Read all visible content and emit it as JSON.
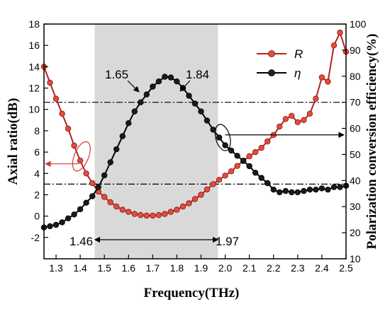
{
  "chart_data": {
    "type": "line",
    "title": "",
    "xlabel": "Frequency(THz)",
    "ylabel_left": "Axial ratio(dB)",
    "ylabel_right": "Polarization conversion efficiency(%)",
    "xlim": [
      1.25,
      2.5
    ],
    "ylim_left": [
      -4,
      18
    ],
    "ylim_right": [
      10,
      100
    ],
    "x_ticks": [
      "1.3",
      "1.4",
      "1.5",
      "1.6",
      "1.7",
      "1.8",
      "1.9",
      "2.0",
      "2.1",
      "2.2",
      "2.3",
      "2.4",
      "2.5"
    ],
    "y_left_ticks": [
      "-2",
      "0",
      "2",
      "4",
      "6",
      "8",
      "10",
      "12",
      "14",
      "16",
      "18"
    ],
    "y_right_ticks": [
      "10",
      "20",
      "30",
      "40",
      "50",
      "60",
      "70",
      "80",
      "90",
      "100"
    ],
    "shaded_band": [
      1.46,
      1.97
    ],
    "ref_line_left": 3,
    "ref_line_right": 70,
    "annotations": {
      "a165": "1.65",
      "a184": "1.84",
      "a146": "1.46",
      "a197": "1.97"
    },
    "legend": {
      "r_label": "R",
      "eta_label": "η",
      "position": "top-right"
    },
    "colors": {
      "R_line": "#b22222",
      "R_marker": "#e84a3c",
      "eta_line": "#000000",
      "band": "#d9d9d9"
    },
    "series": [
      {
        "name": "R",
        "axis": "left",
        "x": [
          1.25,
          1.275,
          1.3,
          1.325,
          1.35,
          1.375,
          1.4,
          1.425,
          1.45,
          1.475,
          1.5,
          1.525,
          1.55,
          1.575,
          1.6,
          1.625,
          1.65,
          1.675,
          1.7,
          1.725,
          1.75,
          1.775,
          1.8,
          1.825,
          1.85,
          1.875,
          1.9,
          1.925,
          1.95,
          1.975,
          2.0,
          2.025,
          2.05,
          2.075,
          2.1,
          2.125,
          2.15,
          2.175,
          2.2,
          2.225,
          2.25,
          2.275,
          2.3,
          2.325,
          2.35,
          2.375,
          2.4,
          2.425,
          2.45,
          2.475,
          2.5
        ],
        "values": [
          14.0,
          12.5,
          11.0,
          9.6,
          8.2,
          6.6,
          5.2,
          4.0,
          3.1,
          2.3,
          1.8,
          1.3,
          0.9,
          0.6,
          0.4,
          0.2,
          0.1,
          0.05,
          0.05,
          0.1,
          0.2,
          0.4,
          0.6,
          0.9,
          1.2,
          1.6,
          2.0,
          2.5,
          3.0,
          3.4,
          3.8,
          4.2,
          4.7,
          5.2,
          5.6,
          6.0,
          6.4,
          7.0,
          7.6,
          8.4,
          9.1,
          9.4,
          8.8,
          9.0,
          9.6,
          11.0,
          13.0,
          12.6,
          16.0,
          17.2,
          15.4
        ]
      },
      {
        "name": "η",
        "axis": "right",
        "x": [
          1.25,
          1.275,
          1.3,
          1.325,
          1.35,
          1.375,
          1.4,
          1.425,
          1.45,
          1.475,
          1.5,
          1.525,
          1.55,
          1.575,
          1.6,
          1.625,
          1.65,
          1.675,
          1.7,
          1.725,
          1.75,
          1.775,
          1.8,
          1.825,
          1.85,
          1.875,
          1.9,
          1.925,
          1.95,
          1.975,
          2.0,
          2.025,
          2.05,
          2.075,
          2.1,
          2.125,
          2.15,
          2.175,
          2.2,
          2.225,
          2.25,
          2.275,
          2.3,
          2.325,
          2.35,
          2.375,
          2.4,
          2.425,
          2.45,
          2.475,
          2.5
        ],
        "values": [
          22,
          22.5,
          23,
          24,
          25.5,
          27,
          29,
          31.5,
          34,
          37.5,
          42,
          47,
          52,
          57,
          62,
          66.5,
          70,
          73,
          76,
          78,
          79.8,
          79.5,
          78,
          75.5,
          72.5,
          69.5,
          66.5,
          63,
          59.5,
          56.5,
          53.5,
          51.5,
          49.5,
          47.5,
          45.5,
          43,
          41,
          39,
          36.5,
          35.5,
          36,
          35.5,
          35.5,
          36,
          36.5,
          36.5,
          37,
          36.5,
          37.5,
          37.5,
          38
        ]
      }
    ]
  }
}
